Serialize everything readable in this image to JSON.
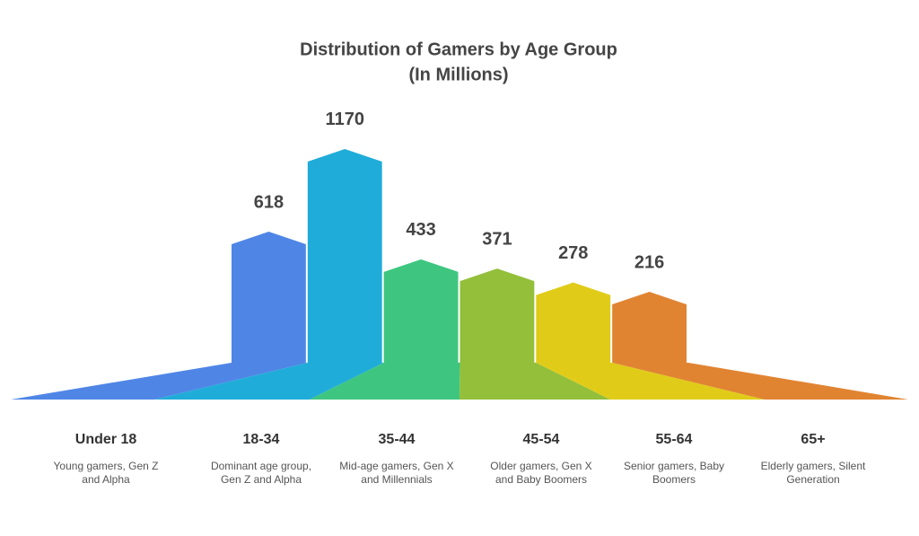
{
  "chart_data": {
    "type": "bar",
    "title": "Distribution of Gamers by Age Group",
    "subtitle": "(In Millions)",
    "categories": [
      "Under 18",
      "18-34",
      "35-44",
      "45-54",
      "55-64",
      "65+"
    ],
    "descriptions": [
      [
        "Young gamers, Gen Z",
        "and Alpha"
      ],
      [
        "Dominant age group,",
        "Gen Z and Alpha"
      ],
      [
        "Mid-age gamers, Gen X",
        "and Millennials"
      ],
      [
        "Older gamers, Gen X",
        "and Baby Boomers"
      ],
      [
        "Senior gamers, Baby",
        "Boomers"
      ],
      [
        "Elderly gamers, Silent",
        "Generation"
      ]
    ],
    "values": [
      618,
      1170,
      433,
      371,
      278,
      216
    ],
    "colors": [
      "#4f86e6",
      "#20acd9",
      "#3ec680",
      "#93bf3b",
      "#e0cc18",
      "#e08432"
    ]
  }
}
